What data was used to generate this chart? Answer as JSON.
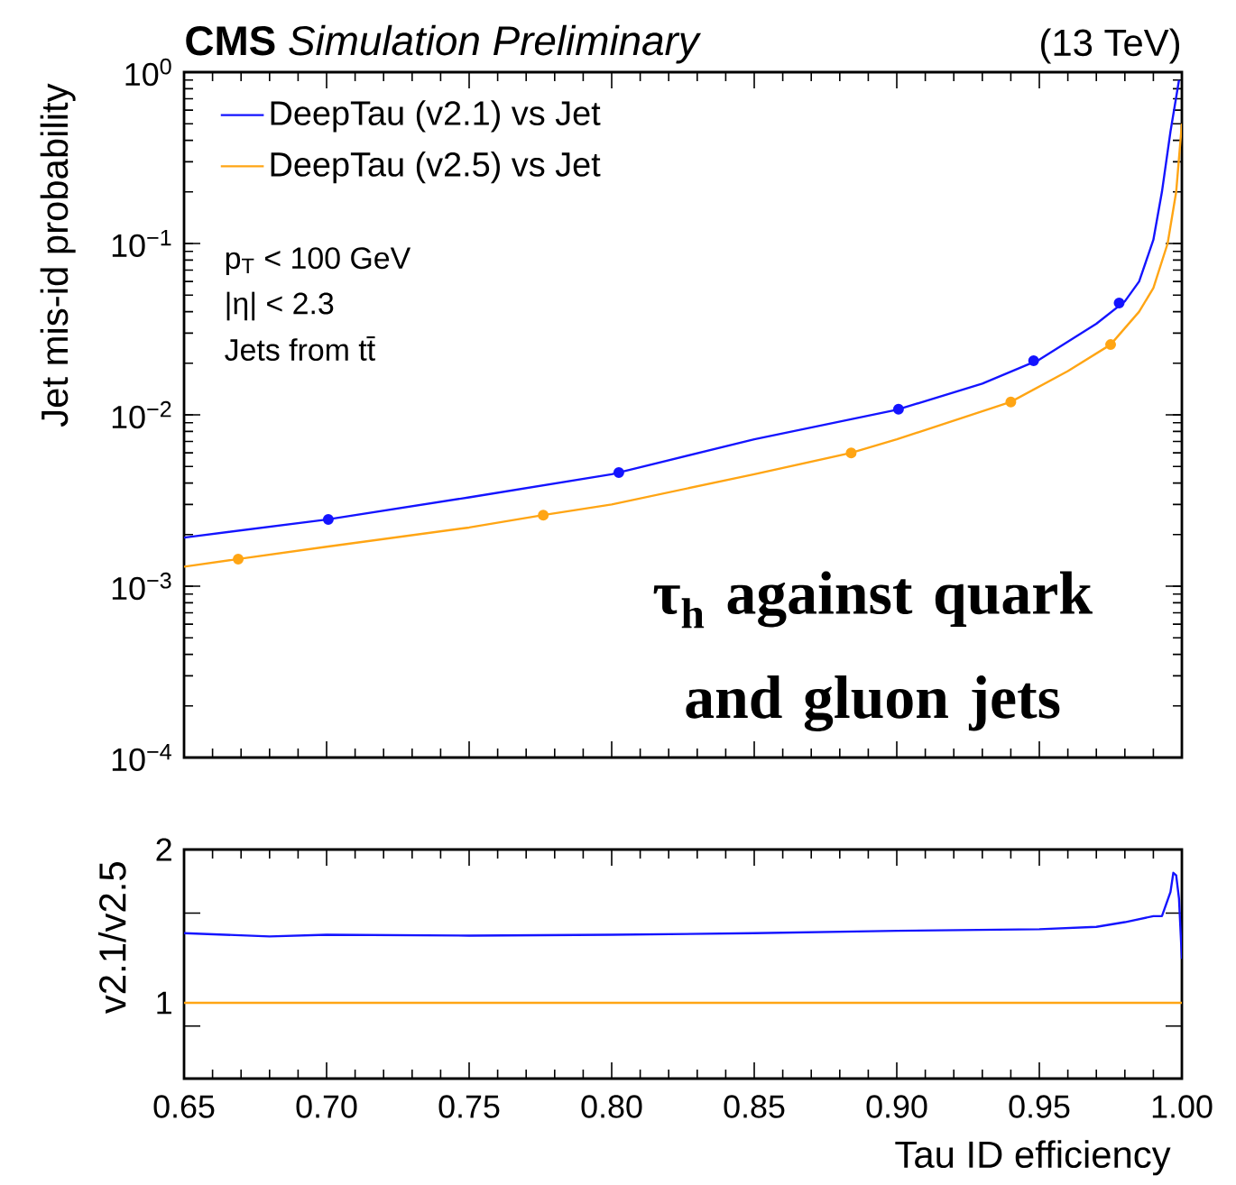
{
  "chart_data": [
    {
      "type": "line",
      "title": "**CMS** *Simulation Preliminary*",
      "ylabel": "Jet mis-id probability",
      "log": "y",
      "legend": "top left",
      "tick_labels": "y",
      "xlim": [
        0.65,
        1.0
      ],
      "xticks": [
        0.65,
        0.7,
        0.75,
        0.8,
        0.85,
        0.9,
        0.95,
        1.0
      ],
      "ylim": [
        0.0001,
        1
      ],
      "yticks": [
        {
          "value": 0.0001,
          "label": "10$^{−4}$"
        },
        {
          "value": 0.001,
          "label": "10$^{−3}$"
        },
        {
          "value": 0.01,
          "label": "10$^{−2}$"
        },
        {
          "value": 0.1,
          "label": "10$^{−1}$"
        },
        {
          "value": 1,
          "label": "10$^{0}$"
        }
      ],
      "annotations": [
        "(13 TeV)",
        "p$_{T}$ < 100 GeV",
        "|η| < 2.3",
        "Jets from tt̄",
        "τ$_{h}$ against quark and gluon jets"
      ],
      "series": [
        {
          "name": "DeepTau (v2.1) vs Jet",
          "color": "#1414ff",
          "marker": "none",
          "x": [
            0.65,
            0.7,
            0.75,
            0.8,
            0.85,
            0.9,
            0.93,
            0.95,
            0.97,
            0.98,
            0.985,
            0.99,
            0.993,
            0.996,
            0.999
          ],
          "values": [
            0.00192,
            0.00245,
            0.0033,
            0.0045,
            0.0072,
            0.0107,
            0.0152,
            0.021,
            0.034,
            0.046,
            0.06,
            0.105,
            0.2,
            0.45,
            0.9
          ]
        },
        {
          "name": "DeepTau (v2.5) vs Jet",
          "color": "#ffa514",
          "marker": "none",
          "x": [
            0.65,
            0.669,
            0.7,
            0.75,
            0.776,
            0.8,
            0.85,
            0.884,
            0.9,
            0.94,
            0.96,
            0.975,
            0.985,
            0.99,
            0.995,
            0.998,
            1.0
          ],
          "values": [
            0.0013,
            0.00144,
            0.0017,
            0.0022,
            0.0026,
            0.003,
            0.0045,
            0.006,
            0.0072,
            0.0119,
            0.018,
            0.0257,
            0.04,
            0.055,
            0.1,
            0.2,
            0.5
          ]
        },
        {
          "type": "scatter",
          "color": "#1414ff",
          "marker": "circle",
          "x": [
            0.7006,
            0.8025,
            0.9006,
            0.948,
            0.978
          ],
          "values": [
            0.00245,
            0.0046,
            0.0108,
            0.0207,
            0.045
          ]
        },
        {
          "type": "scatter",
          "color": "#ffa514",
          "marker": "circle",
          "x": [
            0.669,
            0.776,
            0.884,
            0.94,
            0.975
          ],
          "values": [
            0.00144,
            0.0026,
            0.006,
            0.0119,
            0.0257
          ]
        }
      ]
    },
    {
      "type": "line",
      "xlabel": "Tau ID efficiency",
      "ylabel": "v2.1/v2.5",
      "log": "y",
      "xlim": [
        0.65,
        1.0
      ],
      "xticks": [
        0.65,
        {
          "value": 0.7,
          "label": "0.70"
        },
        0.75,
        {
          "value": 0.8,
          "label": "0.80"
        },
        0.85,
        {
          "value": 0.9,
          "label": "0.90"
        },
        0.95,
        {
          "value": 1.0,
          "label": "1.00"
        }
      ],
      "ylim": [
        0.71,
        2
      ],
      "yticks": [
        {
          "value": 0.9,
          "label": null
        },
        1,
        {
          "value": 1.5,
          "label": null
        },
        2
      ],
      "series": [
        {
          "color": "#1414ff",
          "marker": "none",
          "x": [
            0.65,
            0.68,
            0.7,
            0.75,
            0.8,
            0.85,
            0.9,
            0.95,
            0.97,
            0.98,
            0.99,
            0.993,
            0.996,
            0.997,
            0.998,
            0.999,
            1.0
          ],
          "values": [
            1.37,
            1.35,
            1.36,
            1.355,
            1.36,
            1.37,
            1.385,
            1.395,
            1.41,
            1.44,
            1.48,
            1.48,
            1.65,
            1.8,
            1.78,
            1.6,
            1.22
          ]
        },
        {
          "color": "#ffa514",
          "marker": "none",
          "x": [
            0.65,
            1.0
          ],
          "values": [
            1,
            1
          ]
        }
      ]
    }
  ]
}
